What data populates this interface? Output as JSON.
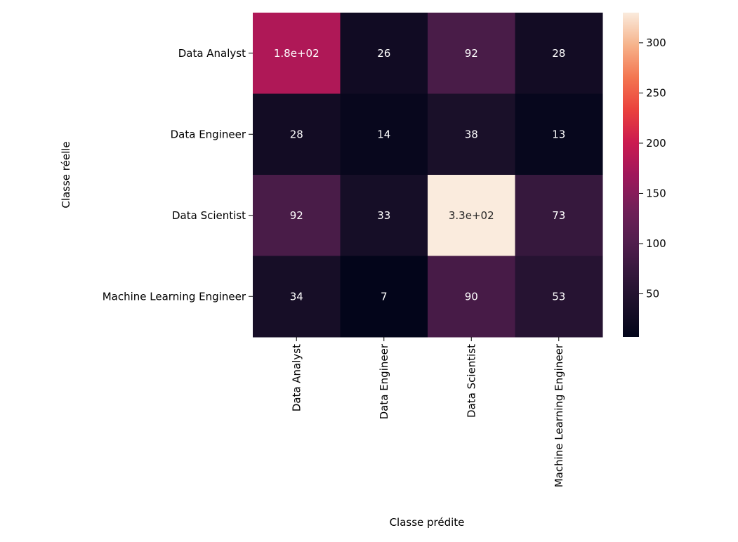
{
  "chart_data": {
    "type": "heatmap",
    "title": "",
    "xlabel": "Classe prédite",
    "ylabel": "Classe réelle",
    "x_categories": [
      "Data Analyst",
      "Data Engineer",
      "Data Scientist",
      "Machine Learning Engineer"
    ],
    "y_categories": [
      "Data Analyst",
      "Data Engineer",
      "Data Scientist",
      "Machine Learning Engineer"
    ],
    "values": [
      [
        180,
        26,
        92,
        28
      ],
      [
        28,
        14,
        38,
        13
      ],
      [
        92,
        33,
        330,
        73
      ],
      [
        34,
        7,
        90,
        53
      ]
    ],
    "cell_labels": [
      [
        "1.8e+02",
        "26",
        "92",
        "28"
      ],
      [
        "28",
        "14",
        "38",
        "13"
      ],
      [
        "92",
        "33",
        "3.3e+02",
        "73"
      ],
      [
        "34",
        "7",
        "90",
        "53"
      ]
    ],
    "colorbar": {
      "min": 7,
      "max": 330,
      "ticks": [
        50,
        100,
        150,
        200,
        250,
        300
      ],
      "tick_labels": [
        "50",
        "100",
        "150",
        "200",
        "250",
        "300"
      ],
      "colormap": "rocket"
    },
    "grid": false,
    "legend": "colorbar-right"
  }
}
